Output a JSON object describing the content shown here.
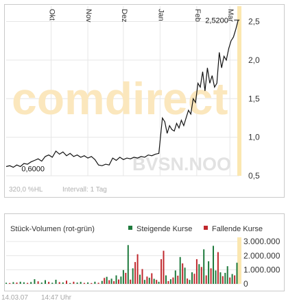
{
  "price_chart": {
    "chart_data": {
      "type": "line",
      "title": "",
      "xlabel": "",
      "ylabel": "",
      "ylim": [
        0.5,
        2.7
      ],
      "yticks": [
        0.5,
        1.0,
        1.5,
        2.0,
        2.5
      ],
      "ytick_labels": [
        "0,5",
        "1,0",
        "1,5",
        "2,0",
        "2,5"
      ],
      "x_month_labels": [
        {
          "label": "Okt",
          "day": 38
        },
        {
          "label": "Nov",
          "day": 69
        },
        {
          "label": "Dez",
          "day": 99
        },
        {
          "label": "Jan",
          "day": 130
        },
        {
          "label": "Feb",
          "day": 161
        },
        {
          "label": "Mar",
          "day": 189
        }
      ],
      "xlim": [
        0,
        197
      ],
      "grid": true,
      "series": [
        {
          "x": [
            0,
            3,
            6,
            9,
            12,
            15,
            18,
            21,
            24,
            27,
            30,
            33,
            36,
            39,
            42,
            45,
            48,
            51,
            54,
            57,
            60,
            63,
            66,
            69,
            72,
            75,
            78,
            81,
            84,
            87,
            90,
            93,
            96,
            99,
            102,
            105,
            108,
            111,
            114,
            117,
            120,
            123,
            126,
            129,
            132,
            134,
            136,
            138,
            140,
            142,
            144,
            146,
            148,
            150,
            152,
            154,
            156,
            158,
            160,
            162,
            164,
            166,
            168,
            170,
            172,
            174,
            176,
            178,
            180,
            182,
            184,
            186,
            188,
            190,
            192,
            194,
            196
          ],
          "y": [
            0.62,
            0.63,
            0.61,
            0.64,
            0.62,
            0.66,
            0.65,
            0.68,
            0.7,
            0.72,
            0.69,
            0.75,
            0.77,
            0.74,
            0.82,
            0.78,
            0.81,
            0.76,
            0.79,
            0.75,
            0.77,
            0.74,
            0.76,
            0.73,
            0.75,
            0.71,
            0.64,
            0.63,
            0.65,
            0.64,
            0.73,
            0.7,
            0.74,
            0.71,
            0.73,
            0.72,
            0.74,
            0.73,
            0.75,
            0.74,
            0.77,
            0.76,
            0.78,
            0.79,
            1.25,
            1.2,
            1.05,
            1.15,
            1.1,
            1.08,
            1.18,
            1.12,
            1.22,
            1.15,
            1.25,
            1.35,
            1.3,
            1.5,
            1.45,
            1.7,
            1.65,
            1.85,
            1.6,
            1.9,
            1.7,
            1.8,
            1.65,
            1.7,
            2.1,
            1.9,
            2.05,
            2.0,
            2.15,
            2.25,
            2.3,
            2.4,
            2.52
          ]
        }
      ],
      "annotations": {
        "min_label": "0,6000",
        "max_label": "2,5200"
      }
    },
    "watermark": "comdirect",
    "ticker": "BVSN.NOO",
    "range_label": "320,0 %HL",
    "interval_label": "Intervall: 1 Tag"
  },
  "volume_chart": {
    "title": "Stück-Volumen (rot-grün)",
    "legend": [
      {
        "label": "Steigende Kurse",
        "color": "#1e7a3c"
      },
      {
        "label": "Fallende Kurse",
        "color": "#c0282d"
      }
    ],
    "chart_data": {
      "type": "bar",
      "title": "Stück-Volumen (rot-grün)",
      "xlabel": "",
      "ylabel": "",
      "ylim": [
        0,
        3300000
      ],
      "yticks": [
        0,
        1000000,
        2000000,
        3000000
      ],
      "ytick_labels": [
        "0",
        "1.000.000",
        "2.000.000",
        "3.000.000"
      ],
      "grid": true,
      "bars": [
        {
          "day": 0,
          "v": 80000,
          "dir": "up"
        },
        {
          "day": 3,
          "v": 60000,
          "dir": "down"
        },
        {
          "day": 6,
          "v": 120000,
          "dir": "up"
        },
        {
          "day": 9,
          "v": 90000,
          "dir": "down"
        },
        {
          "day": 12,
          "v": 150000,
          "dir": "up"
        },
        {
          "day": 15,
          "v": 110000,
          "dir": "up"
        },
        {
          "day": 18,
          "v": 70000,
          "dir": "down"
        },
        {
          "day": 21,
          "v": 130000,
          "dir": "up"
        },
        {
          "day": 24,
          "v": 330000,
          "dir": "up"
        },
        {
          "day": 27,
          "v": 180000,
          "dir": "down"
        },
        {
          "day": 30,
          "v": 90000,
          "dir": "up"
        },
        {
          "day": 33,
          "v": 260000,
          "dir": "up"
        },
        {
          "day": 36,
          "v": 140000,
          "dir": "down"
        },
        {
          "day": 39,
          "v": 80000,
          "dir": "up"
        },
        {
          "day": 42,
          "v": 290000,
          "dir": "up"
        },
        {
          "day": 45,
          "v": 120000,
          "dir": "down"
        },
        {
          "day": 48,
          "v": 100000,
          "dir": "up"
        },
        {
          "day": 51,
          "v": 230000,
          "dir": "down"
        },
        {
          "day": 54,
          "v": 60000,
          "dir": "up"
        },
        {
          "day": 57,
          "v": 150000,
          "dir": "down"
        },
        {
          "day": 60,
          "v": 90000,
          "dir": "up"
        },
        {
          "day": 63,
          "v": 140000,
          "dir": "up"
        },
        {
          "day": 66,
          "v": 70000,
          "dir": "down"
        },
        {
          "day": 69,
          "v": 100000,
          "dir": "up"
        },
        {
          "day": 72,
          "v": 60000,
          "dir": "down"
        },
        {
          "day": 75,
          "v": 150000,
          "dir": "up"
        },
        {
          "day": 78,
          "v": 80000,
          "dir": "down"
        },
        {
          "day": 81,
          "v": 210000,
          "dir": "up"
        },
        {
          "day": 83,
          "v": 420000,
          "dir": "down"
        },
        {
          "day": 85,
          "v": 500000,
          "dir": "up"
        },
        {
          "day": 87,
          "v": 260000,
          "dir": "down"
        },
        {
          "day": 89,
          "v": 370000,
          "dir": "up"
        },
        {
          "day": 91,
          "v": 190000,
          "dir": "down"
        },
        {
          "day": 93,
          "v": 600000,
          "dir": "up"
        },
        {
          "day": 95,
          "v": 310000,
          "dir": "down"
        },
        {
          "day": 97,
          "v": 520000,
          "dir": "up"
        },
        {
          "day": 99,
          "v": 980000,
          "dir": "up"
        },
        {
          "day": 101,
          "v": 780000,
          "dir": "down"
        },
        {
          "day": 103,
          "v": 2750000,
          "dir": "up"
        },
        {
          "day": 105,
          "v": 300000,
          "dir": "down"
        },
        {
          "day": 107,
          "v": 1100000,
          "dir": "up"
        },
        {
          "day": 109,
          "v": 1550000,
          "dir": "down"
        },
        {
          "day": 111,
          "v": 2100000,
          "dir": "down"
        },
        {
          "day": 113,
          "v": 650000,
          "dir": "up"
        },
        {
          "day": 115,
          "v": 1050000,
          "dir": "down"
        },
        {
          "day": 117,
          "v": 280000,
          "dir": "up"
        },
        {
          "day": 119,
          "v": 520000,
          "dir": "down"
        },
        {
          "day": 121,
          "v": 430000,
          "dir": "up"
        },
        {
          "day": 123,
          "v": 750000,
          "dir": "down"
        },
        {
          "day": 125,
          "v": 360000,
          "dir": "up"
        },
        {
          "day": 127,
          "v": 280000,
          "dir": "down"
        },
        {
          "day": 129,
          "v": 150000,
          "dir": "up"
        },
        {
          "day": 131,
          "v": 1750000,
          "dir": "down"
        },
        {
          "day": 133,
          "v": 2350000,
          "dir": "down"
        },
        {
          "day": 135,
          "v": 600000,
          "dir": "up"
        },
        {
          "day": 137,
          "v": 200000,
          "dir": "down"
        },
        {
          "day": 139,
          "v": 330000,
          "dir": "up"
        },
        {
          "day": 141,
          "v": 450000,
          "dir": "down"
        },
        {
          "day": 143,
          "v": 950000,
          "dir": "up"
        },
        {
          "day": 145,
          "v": 580000,
          "dir": "down"
        },
        {
          "day": 147,
          "v": 1900000,
          "dir": "up"
        },
        {
          "day": 149,
          "v": 1450000,
          "dir": "down"
        },
        {
          "day": 151,
          "v": 1150000,
          "dir": "up"
        },
        {
          "day": 153,
          "v": 380000,
          "dir": "down"
        },
        {
          "day": 155,
          "v": 280000,
          "dir": "up"
        },
        {
          "day": 157,
          "v": 820000,
          "dir": "up"
        },
        {
          "day": 159,
          "v": 720000,
          "dir": "down"
        },
        {
          "day": 161,
          "v": 1750000,
          "dir": "down"
        },
        {
          "day": 163,
          "v": 1400000,
          "dir": "up"
        },
        {
          "day": 165,
          "v": 1200000,
          "dir": "down"
        },
        {
          "day": 167,
          "v": 2450000,
          "dir": "up"
        },
        {
          "day": 169,
          "v": 600000,
          "dir": "down"
        },
        {
          "day": 171,
          "v": 1600000,
          "dir": "up"
        },
        {
          "day": 173,
          "v": 1100000,
          "dir": "down"
        },
        {
          "day": 175,
          "v": 2700000,
          "dir": "up"
        },
        {
          "day": 177,
          "v": 950000,
          "dir": "up"
        },
        {
          "day": 179,
          "v": 2250000,
          "dir": "down"
        },
        {
          "day": 181,
          "v": 820000,
          "dir": "up"
        },
        {
          "day": 183,
          "v": 550000,
          "dir": "down"
        },
        {
          "day": 185,
          "v": 780000,
          "dir": "up"
        },
        {
          "day": 187,
          "v": 1250000,
          "dir": "up"
        },
        {
          "day": 189,
          "v": 450000,
          "dir": "down"
        },
        {
          "day": 191,
          "v": 700000,
          "dir": "up"
        },
        {
          "day": 193,
          "v": 600000,
          "dir": "down"
        },
        {
          "day": 195,
          "v": 1500000,
          "dir": "up"
        }
      ]
    }
  },
  "footer": {
    "date": "14.03.07",
    "time": "14:47 Uhr"
  }
}
